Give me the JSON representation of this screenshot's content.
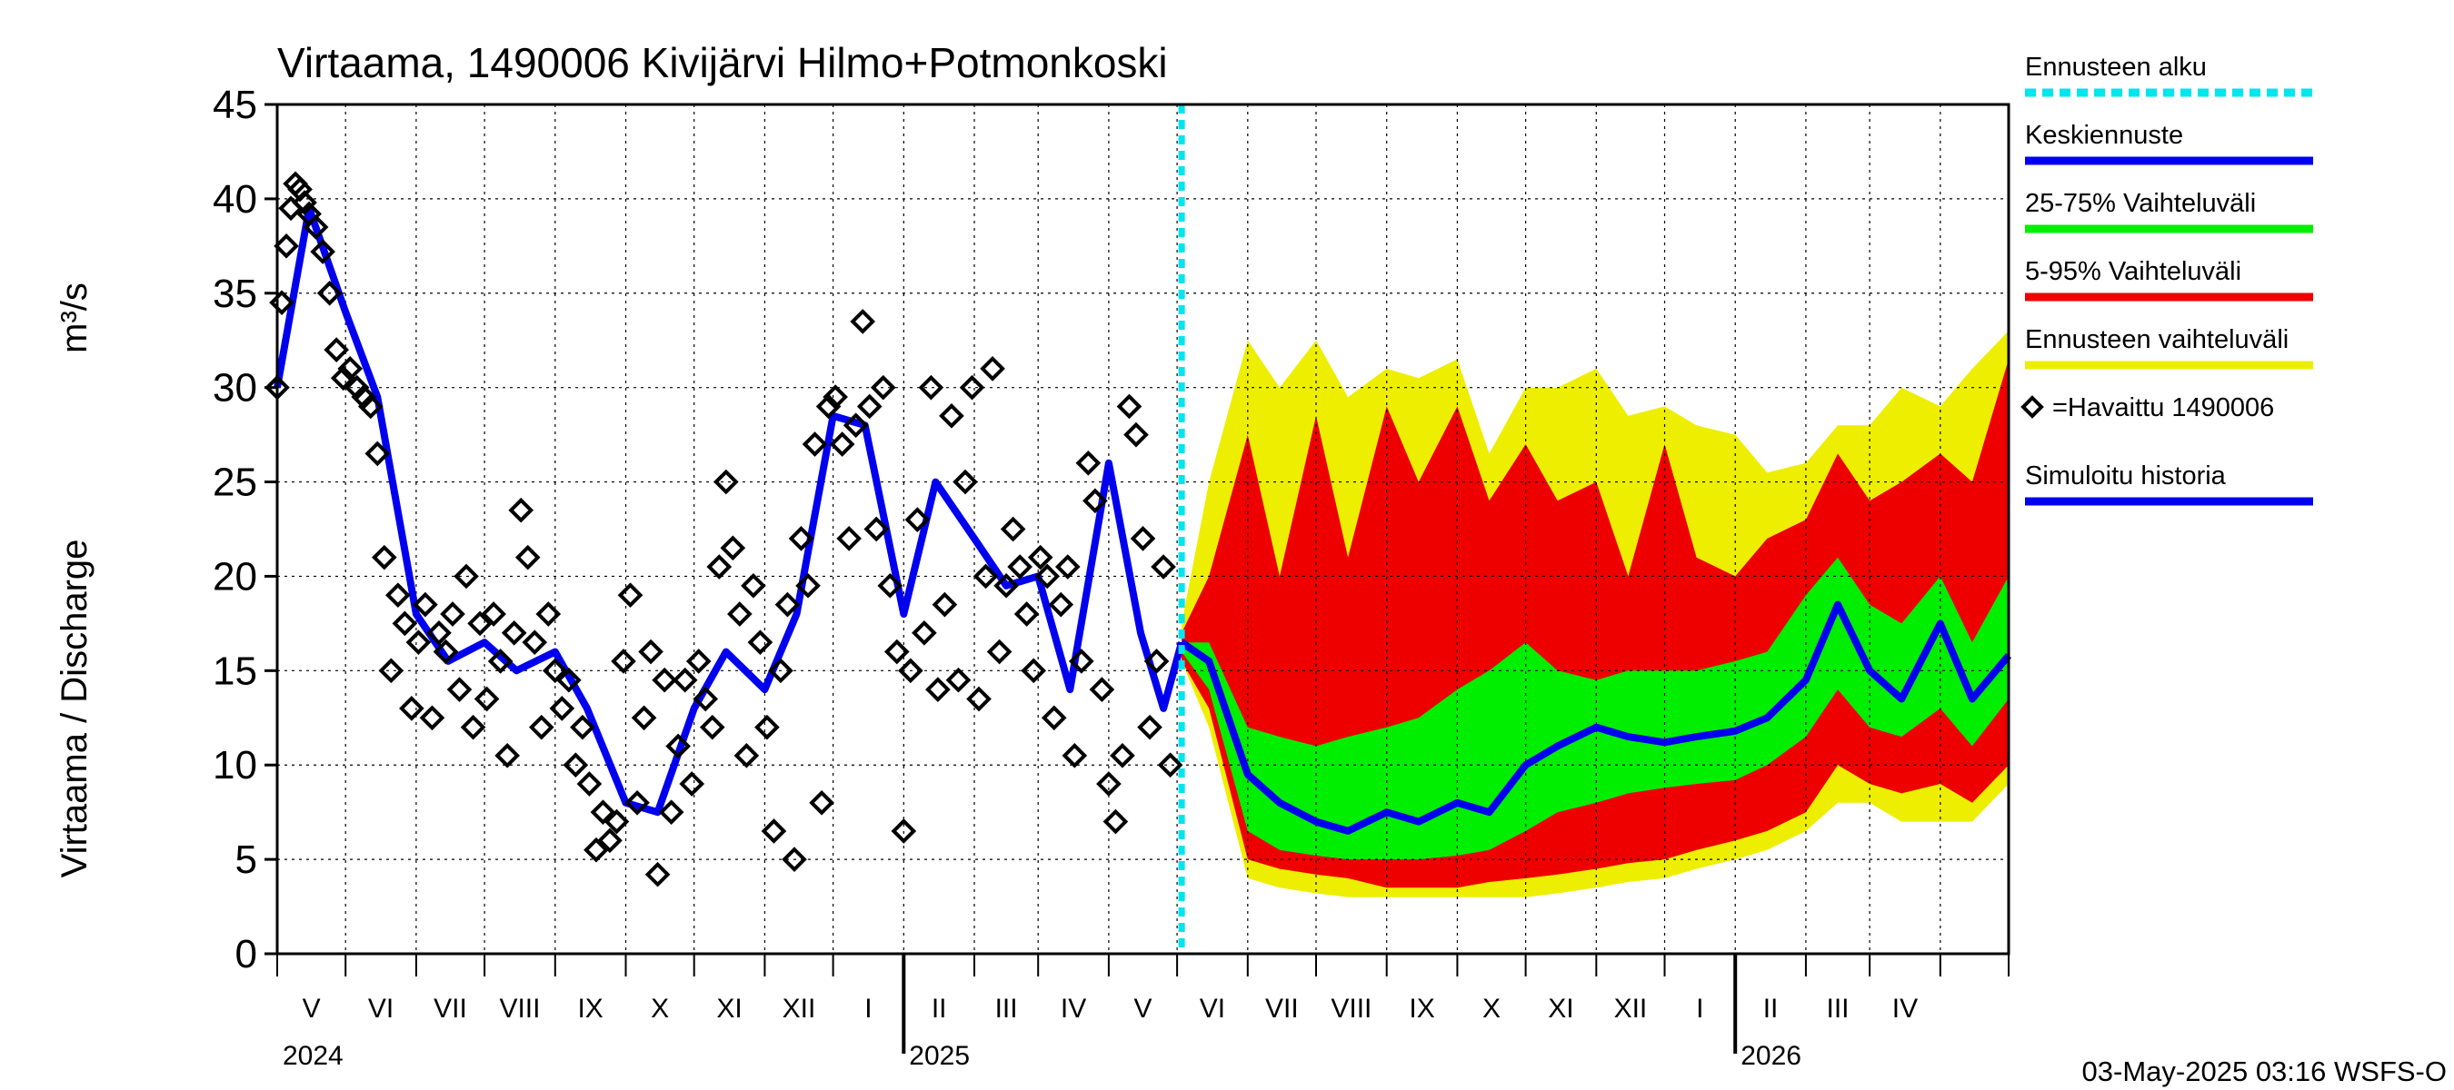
{
  "chart_data": {
    "type": "area",
    "title": "Virtaama, 1490006 Kivijärvi Hilmo+Potmonkoski",
    "ylabel": "Virtaama / Discharge",
    "yunit": "m³/s",
    "ylim": [
      0,
      45
    ],
    "yticks": [
      0,
      5,
      10,
      15,
      20,
      25,
      30,
      35,
      40,
      45
    ],
    "xlim": [
      "2024-04-01",
      "2026-05-01"
    ],
    "grid": true,
    "month_labels": [
      "V",
      "VI",
      "VII",
      "VIII",
      "IX",
      "X",
      "XI",
      "XII",
      "I",
      "II",
      "III",
      "IV",
      "V",
      "VI",
      "VII",
      "VIII",
      "IX",
      "X",
      "XI",
      "XII",
      "I",
      "II",
      "III",
      "IV"
    ],
    "year_labels": [
      "2024",
      "2025",
      "2026"
    ],
    "forecast_start": "2025-05-03",
    "legend": {
      "position": "right",
      "items": [
        {
          "label": "Ennusteen alku",
          "color": "#00e5ee",
          "style": "dashed"
        },
        {
          "label": "Keskiennuste",
          "color": "#0000ee",
          "style": "line"
        },
        {
          "label": "25-75% Vaihteluväli",
          "color": "#00ee00",
          "style": "line"
        },
        {
          "label": "5-95% Vaihteluväli",
          "color": "#ee0000",
          "style": "line"
        },
        {
          "label": "Ennusteen vaihteluväli",
          "color": "#eeee00",
          "style": "line"
        },
        {
          "label": "=Havaittu 1490006",
          "color": "#000000",
          "style": "marker"
        },
        {
          "label": "Simuloitu historia",
          "color": "#0000ee",
          "style": "line"
        }
      ]
    },
    "series": [
      {
        "name": "Havaittu 1490006",
        "type": "scatter",
        "x": [
          "2024-04-01",
          "2024-04-03",
          "2024-04-05",
          "2024-04-07",
          "2024-04-09",
          "2024-04-11",
          "2024-04-13",
          "2024-04-15",
          "2024-04-18",
          "2024-04-21",
          "2024-04-24",
          "2024-04-27",
          "2024-04-30",
          "2024-05-03",
          "2024-05-06",
          "2024-05-09",
          "2024-05-12",
          "2024-05-15",
          "2024-05-18",
          "2024-05-21",
          "2024-05-24",
          "2024-05-27",
          "2024-05-30",
          "2024-06-02",
          "2024-06-05",
          "2024-06-08",
          "2024-06-11",
          "2024-06-14",
          "2024-06-17",
          "2024-06-20",
          "2024-06-23",
          "2024-06-26",
          "2024-06-29",
          "2024-07-02",
          "2024-07-05",
          "2024-07-08",
          "2024-07-11",
          "2024-07-14",
          "2024-07-17",
          "2024-07-20",
          "2024-07-23",
          "2024-07-26",
          "2024-07-29",
          "2024-08-01",
          "2024-08-04",
          "2024-08-07",
          "2024-08-10",
          "2024-08-13",
          "2024-08-16",
          "2024-08-19",
          "2024-08-22",
          "2024-08-25",
          "2024-08-28",
          "2024-08-31",
          "2024-09-03",
          "2024-09-06",
          "2024-09-09",
          "2024-09-12",
          "2024-09-15",
          "2024-09-18",
          "2024-09-21",
          "2024-09-24",
          "2024-09-27",
          "2024-09-30",
          "2024-10-03",
          "2024-10-06",
          "2024-10-09",
          "2024-10-12",
          "2024-10-15",
          "2024-10-18",
          "2024-10-21",
          "2024-10-24",
          "2024-10-27",
          "2024-10-30",
          "2024-11-02",
          "2024-11-05",
          "2024-11-08",
          "2024-11-11",
          "2024-11-14",
          "2024-11-17",
          "2024-11-20",
          "2024-11-23",
          "2024-11-26",
          "2024-11-29",
          "2024-12-02",
          "2024-12-05",
          "2024-12-08",
          "2024-12-11",
          "2024-12-14",
          "2024-12-17",
          "2024-12-20",
          "2024-12-23",
          "2024-12-26",
          "2024-12-29",
          "2025-01-01",
          "2025-01-04",
          "2025-01-07",
          "2025-01-10",
          "2025-01-13",
          "2025-01-16",
          "2025-01-19",
          "2025-01-22",
          "2025-01-25",
          "2025-01-28",
          "2025-01-31",
          "2025-02-03",
          "2025-02-06",
          "2025-02-09",
          "2025-02-12",
          "2025-02-15",
          "2025-02-18",
          "2025-02-21",
          "2025-02-24",
          "2025-02-27",
          "2025-03-02",
          "2025-03-05",
          "2025-03-08",
          "2025-03-11",
          "2025-03-14",
          "2025-03-17",
          "2025-03-20",
          "2025-03-23",
          "2025-03-26",
          "2025-03-29",
          "2025-04-01",
          "2025-04-04",
          "2025-04-07",
          "2025-04-10",
          "2025-04-13",
          "2025-04-16",
          "2025-04-19",
          "2025-04-22",
          "2025-04-25",
          "2025-04-28"
        ],
        "values": [
          30.0,
          34.5,
          37.5,
          39.5,
          40.8,
          40.5,
          39.8,
          39.2,
          38.5,
          37.2,
          35.0,
          32.0,
          30.5,
          31.0,
          30.0,
          29.5,
          29.0,
          26.5,
          21.0,
          15.0,
          19.0,
          17.5,
          13.0,
          16.5,
          18.5,
          12.5,
          17.0,
          16.0,
          18.0,
          14.0,
          20.0,
          12.0,
          17.5,
          13.5,
          18.0,
          15.5,
          10.5,
          17.0,
          23.5,
          21.0,
          16.5,
          12.0,
          18.0,
          15.0,
          13.0,
          14.5,
          10.0,
          12.0,
          9.0,
          5.5,
          7.5,
          6.0,
          7.0,
          15.5,
          19.0,
          8.0,
          12.5,
          16.0,
          4.2,
          14.5,
          7.5,
          11.0,
          14.5,
          9.0,
          15.5,
          13.5,
          12.0,
          20.5,
          25.0,
          21.5,
          18.0,
          10.5,
          19.5,
          16.5,
          12.0,
          6.5,
          15.0,
          18.5,
          5.0,
          22.0,
          19.5,
          27.0,
          8.0,
          29.0,
          29.5,
          27.0,
          22.0,
          28.0,
          33.5,
          29.0,
          22.5,
          30.0,
          19.5,
          16.0,
          6.5,
          15.0,
          23.0,
          17.0,
          30.0,
          14.0,
          18.5,
          28.5,
          14.5,
          25.0,
          30.0,
          13.5,
          20.0,
          31.0,
          16.0,
          19.5,
          22.5,
          20.5,
          18.0,
          15.0,
          21.0,
          20.0,
          12.5,
          18.5,
          20.5,
          10.5,
          15.5,
          26.0,
          24.0,
          14.0,
          9.0,
          7.0,
          10.5,
          29.0,
          27.5,
          22.0,
          12.0,
          15.5,
          20.5,
          10.0
        ]
      },
      {
        "name": "Simuloitu historia",
        "type": "line",
        "x": [
          "2024-04-01",
          "2024-04-15",
          "2024-05-01",
          "2024-05-15",
          "2024-06-01",
          "2024-06-15",
          "2024-07-01",
          "2024-07-15",
          "2024-08-01",
          "2024-08-15",
          "2024-09-01",
          "2024-09-15",
          "2024-10-01",
          "2024-10-15",
          "2024-11-01",
          "2024-11-15",
          "2024-12-01",
          "2024-12-15",
          "2025-01-01",
          "2025-01-15",
          "2025-02-01",
          "2025-02-15",
          "2025-03-01",
          "2025-03-15",
          "2025-04-01",
          "2025-04-15",
          "2025-04-25",
          "2025-05-03"
        ],
        "values": [
          30.0,
          39.5,
          34.0,
          29.5,
          18.0,
          15.5,
          16.5,
          15.0,
          16.0,
          13.0,
          8.0,
          7.5,
          13.0,
          16.0,
          14.0,
          18.0,
          28.5,
          28.0,
          18.0,
          25.0,
          22.0,
          19.5,
          20.0,
          14.0,
          26.0,
          17.0,
          13.0,
          16.5
        ]
      },
      {
        "name": "Keskiennuste",
        "type": "line",
        "x": [
          "2025-05-03",
          "2025-05-15",
          "2025-06-01",
          "2025-06-15",
          "2025-07-01",
          "2025-07-15",
          "2025-08-01",
          "2025-08-15",
          "2025-09-01",
          "2025-09-15",
          "2025-10-01",
          "2025-10-15",
          "2025-11-01",
          "2025-11-15",
          "2025-12-01",
          "2025-12-15",
          "2026-01-01",
          "2026-01-15",
          "2026-02-01",
          "2026-02-15",
          "2026-03-01",
          "2026-03-15",
          "2026-04-01",
          "2026-04-15",
          "2026-05-01"
        ],
        "values": [
          16.5,
          15.5,
          9.5,
          8.0,
          7.0,
          6.5,
          7.5,
          7.0,
          8.0,
          7.5,
          10.0,
          11.0,
          12.0,
          11.5,
          11.2,
          11.5,
          11.8,
          12.5,
          14.5,
          18.5,
          15.0,
          13.5,
          17.5,
          13.5,
          15.8
        ]
      },
      {
        "name": "25-75% Vaihteluväli",
        "type": "band",
        "x": [
          "2025-05-03",
          "2025-05-15",
          "2025-06-01",
          "2025-06-15",
          "2025-07-01",
          "2025-07-15",
          "2025-08-01",
          "2025-08-15",
          "2025-09-01",
          "2025-09-15",
          "2025-10-01",
          "2025-10-15",
          "2025-11-01",
          "2025-11-15",
          "2025-12-01",
          "2025-12-15",
          "2026-01-01",
          "2026-01-15",
          "2026-02-01",
          "2026-02-15",
          "2026-03-01",
          "2026-03-15",
          "2026-04-01",
          "2026-04-15",
          "2026-05-01"
        ],
        "low": [
          16.0,
          14.0,
          6.5,
          5.5,
          5.2,
          5.0,
          5.0,
          5.0,
          5.2,
          5.5,
          6.5,
          7.5,
          8.0,
          8.5,
          8.8,
          9.0,
          9.2,
          10.0,
          11.5,
          14.0,
          12.0,
          11.5,
          13.0,
          11.0,
          13.5
        ],
        "high": [
          16.5,
          16.5,
          12.0,
          11.5,
          11.0,
          11.5,
          12.0,
          12.5,
          14.0,
          15.0,
          16.5,
          15.0,
          14.5,
          15.0,
          15.0,
          15.0,
          15.5,
          16.0,
          19.0,
          21.0,
          18.5,
          17.5,
          20.0,
          16.5,
          20.0
        ]
      },
      {
        "name": "5-95% Vaihteluväli",
        "type": "band",
        "x": [
          "2025-05-03",
          "2025-05-15",
          "2025-06-01",
          "2025-06-15",
          "2025-07-01",
          "2025-07-15",
          "2025-08-01",
          "2025-08-15",
          "2025-09-01",
          "2025-09-15",
          "2025-10-01",
          "2025-10-15",
          "2025-11-01",
          "2025-11-15",
          "2025-12-01",
          "2025-12-15",
          "2026-01-01",
          "2026-01-15",
          "2026-02-01",
          "2026-02-15",
          "2026-03-01",
          "2026-03-15",
          "2026-04-01",
          "2026-04-15",
          "2026-05-01"
        ],
        "low": [
          15.5,
          13.0,
          5.0,
          4.5,
          4.2,
          4.0,
          3.5,
          3.5,
          3.5,
          3.8,
          4.0,
          4.2,
          4.5,
          4.8,
          5.0,
          5.5,
          6.0,
          6.5,
          7.5,
          10.0,
          9.0,
          8.5,
          9.0,
          8.0,
          10.0
        ],
        "high": [
          17.0,
          20.0,
          27.5,
          20.0,
          28.5,
          21.0,
          29.0,
          25.0,
          29.0,
          24.0,
          27.0,
          24.0,
          25.0,
          20.0,
          27.0,
          21.0,
          20.0,
          22.0,
          23.0,
          26.5,
          24.0,
          25.0,
          26.5,
          25.0,
          31.5
        ]
      },
      {
        "name": "Ennusteen vaihteluväli",
        "type": "band",
        "x": [
          "2025-05-03",
          "2025-05-15",
          "2025-06-01",
          "2025-06-15",
          "2025-07-01",
          "2025-07-15",
          "2025-08-01",
          "2025-08-15",
          "2025-09-01",
          "2025-09-15",
          "2025-10-01",
          "2025-10-15",
          "2025-11-01",
          "2025-11-15",
          "2025-12-01",
          "2025-12-15",
          "2026-01-01",
          "2026-01-15",
          "2026-02-01",
          "2026-02-15",
          "2026-03-01",
          "2026-03-15",
          "2026-04-01",
          "2026-04-15",
          "2026-05-01"
        ],
        "low": [
          15.5,
          12.0,
          4.0,
          3.5,
          3.2,
          3.0,
          3.0,
          3.0,
          3.0,
          3.0,
          3.0,
          3.2,
          3.5,
          3.8,
          4.0,
          4.5,
          5.0,
          5.5,
          6.5,
          8.0,
          8.0,
          7.0,
          7.0,
          7.0,
          9.0
        ],
        "high": [
          17.5,
          25.0,
          32.5,
          30.0,
          32.5,
          29.5,
          31.0,
          30.5,
          31.5,
          26.5,
          30.0,
          30.0,
          31.0,
          28.5,
          29.0,
          28.0,
          27.5,
          25.5,
          26.0,
          28.0,
          28.0,
          30.0,
          29.0,
          31.0,
          33.0
        ]
      }
    ],
    "footer": "03-May-2025 03:16 WSFS-O"
  }
}
